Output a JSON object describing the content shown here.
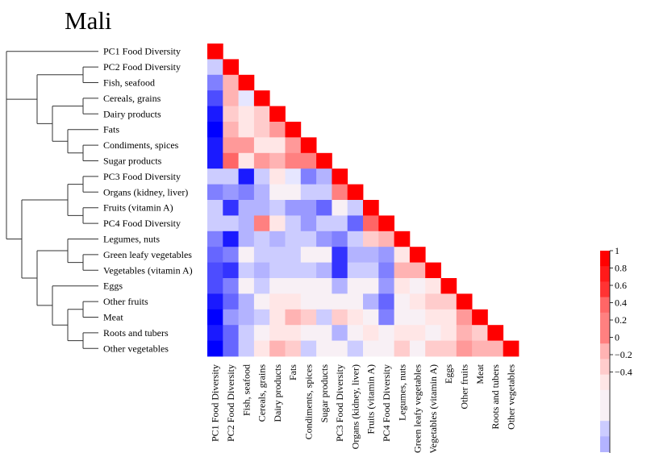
{
  "chart_data": {
    "type": "heatmap",
    "title": "Mali",
    "subtype": "lower-triangular correlation matrix with hierarchical clustering dendrogram",
    "labels": [
      "PC1 Food Diversity",
      "PC2 Food Diversity",
      "Fish, seafood",
      "Cereals, grains",
      "Dairy products",
      "Fats",
      "Condiments, spices",
      "Sugar products",
      "PC3 Food Diversity",
      "Organs (kidney, liver)",
      "Fruits (vitamin A)",
      "PC4 Food Diversity",
      "Legumes, nuts",
      "Green leafy vegetables",
      "Vegetables (vitamin A)",
      "Eggs",
      "Other fruits",
      "Meat",
      "Roots and tubers",
      "Other vegetables"
    ],
    "matrix": [
      [
        1
      ],
      [
        -0.2,
        1
      ],
      [
        -0.5,
        0.3,
        1
      ],
      [
        -0.7,
        0.3,
        -0.1,
        1
      ],
      [
        -0.9,
        0.2,
        0.1,
        0.2,
        1
      ],
      [
        -1.0,
        0.3,
        0.1,
        0.2,
        0.4,
        1
      ],
      [
        -0.9,
        0.4,
        0.4,
        0.1,
        0.1,
        0.4,
        1
      ],
      [
        -0.9,
        0.6,
        0.05,
        0.4,
        0.3,
        0.5,
        0.5,
        1
      ],
      [
        -0.2,
        -0.2,
        -0.9,
        -0.2,
        0.05,
        -0.1,
        -0.5,
        -0.3,
        1
      ],
      [
        -0.5,
        -0.4,
        -0.5,
        -0.3,
        -0.05,
        -0.05,
        -0.2,
        -0.2,
        0.5,
        1
      ],
      [
        -0.2,
        -0.8,
        -0.3,
        -0.3,
        -0.2,
        -0.4,
        -0.4,
        -0.6,
        -0.05,
        -0.2,
        1
      ],
      [
        -0.2,
        -0.2,
        -0.3,
        0.5,
        0.05,
        -0.2,
        -0.4,
        -0.2,
        -0.2,
        -0.6,
        0.6,
        1
      ],
      [
        -0.5,
        -0.9,
        -0.3,
        -0.2,
        -0.3,
        -0.2,
        -0.2,
        -0.4,
        -0.5,
        -0.2,
        0.2,
        0.3,
        1
      ],
      [
        -0.6,
        -0.5,
        -0.05,
        -0.2,
        -0.2,
        -0.2,
        -0.05,
        -0.05,
        -0.8,
        -0.3,
        -0.3,
        -0.4,
        0.1,
        1
      ],
      [
        -0.7,
        -0.8,
        -0.2,
        -0.3,
        -0.2,
        -0.2,
        -0.2,
        -0.3,
        -0.8,
        -0.2,
        -0.2,
        -0.5,
        0.3,
        0.3,
        1
      ],
      [
        -0.7,
        -0.5,
        -0.05,
        -0.2,
        -0.05,
        -0.05,
        -0.05,
        -0.05,
        -0.3,
        -0.05,
        -0.05,
        -0.4,
        0.1,
        -0.05,
        0.1,
        1
      ],
      [
        -0.9,
        -0.6,
        -0.3,
        -0.05,
        0.05,
        0.05,
        -0.05,
        -0.05,
        -0.05,
        -0.05,
        -0.3,
        -0.6,
        -0.05,
        0.05,
        0.2,
        0.2,
        1
      ],
      [
        -1.0,
        -0.4,
        -0.3,
        -0.2,
        0.05,
        0.3,
        0.2,
        -0.2,
        0.2,
        0.05,
        -0.05,
        -0.5,
        -0.05,
        -0.05,
        0.05,
        0.1,
        0.4,
        1
      ],
      [
        -0.9,
        -0.6,
        -0.2,
        -0.05,
        0.05,
        0.05,
        -0.05,
        -0.05,
        -0.3,
        -0.05,
        0.05,
        -0.05,
        0.05,
        0.05,
        -0.05,
        0.05,
        0.3,
        0.2,
        1
      ],
      [
        -1.0,
        -0.6,
        -0.2,
        0.05,
        0.3,
        0.2,
        -0.2,
        -0.05,
        -0.05,
        -0.2,
        -0.05,
        -0.05,
        0.2,
        -0.05,
        0.2,
        0.2,
        0.4,
        0.3,
        0.3,
        1
      ]
    ],
    "colorbar": {
      "ticks": [
        "1",
        "0.8",
        "0.6",
        "0.4",
        "0.2",
        "0",
        "-0.2",
        "-0.4"
      ],
      "range": [
        -1,
        1
      ],
      "low_color": "#0000ff",
      "mid_color": "#ffffff",
      "high_color": "#ff0000",
      "steps": 20
    },
    "dendrogram": "left",
    "clusters": [
      [
        "PC1 Food Diversity"
      ],
      [
        [
          "PC2 Food Diversity",
          "Fish, seafood"
        ],
        [
          [
            "Cereals, grains",
            "Dairy products"
          ],
          [
            "Fats",
            [
              "Condiments, spices",
              "Sugar products"
            ]
          ]
        ]
      ],
      [
        [
          [
            "PC3 Food Diversity",
            "Organs (kidney, liver)"
          ],
          [
            "Fruits (vitamin A)",
            "PC4 Food Diversity"
          ]
        ],
        [
          [
            "Legumes, nuts",
            [
              "Green leafy vegetables",
              "Vegetables (vitamin A)"
            ]
          ],
          [
            "Eggs",
            [
              [
                "Other fruits",
                "Meat"
              ],
              [
                "Roots and tubers",
                "Other vegetables"
              ]
            ]
          ]
        ]
      ]
    ]
  }
}
